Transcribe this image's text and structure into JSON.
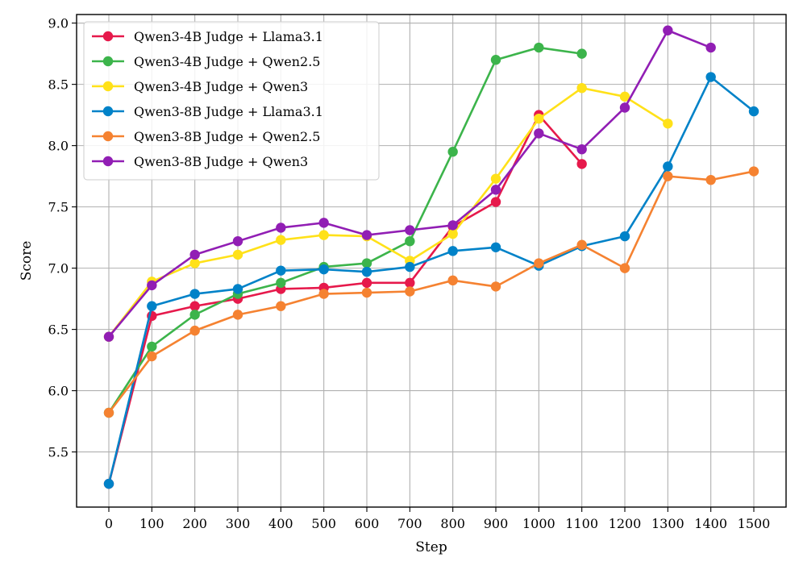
{
  "chart_data": {
    "type": "line",
    "title": "",
    "xlabel": "Step",
    "ylabel": "Score",
    "x": [
      0,
      100,
      200,
      300,
      400,
      500,
      600,
      700,
      800,
      900,
      1000,
      1100,
      1200,
      1300,
      1400,
      1500
    ],
    "x_tick_labels": [
      "0",
      "100",
      "200",
      "300",
      "400",
      "500",
      "600",
      "700",
      "800",
      "900",
      "1000",
      "1100",
      "1200",
      "1300",
      "1400",
      "1500"
    ],
    "y_ticks": [
      5.5,
      6.0,
      6.5,
      7.0,
      7.5,
      8.0,
      8.5,
      9.0
    ],
    "y_tick_labels": [
      "5.5",
      "6.0",
      "6.5",
      "7.0",
      "7.5",
      "8.0",
      "8.5",
      "9.0"
    ],
    "xlim": [
      -75,
      1575
    ],
    "ylim": [
      5.05,
      9.07
    ],
    "grid": true,
    "legend_position": "top-left",
    "series": [
      {
        "name": "Qwen3-4B Judge + Llama3.1",
        "color": "#e6194b",
        "x": [
          0,
          100,
          200,
          300,
          400,
          500,
          600,
          700,
          800,
          900,
          1000,
          1100
        ],
        "values": [
          5.24,
          6.61,
          6.69,
          6.75,
          6.83,
          6.84,
          6.88,
          6.88,
          7.34,
          7.54,
          8.25,
          7.85
        ]
      },
      {
        "name": "Qwen3-4B Judge + Qwen2.5",
        "color": "#3cb44b",
        "x": [
          0,
          100,
          200,
          300,
          400,
          500,
          600,
          700,
          800,
          900,
          1000,
          1100
        ],
        "values": [
          5.82,
          6.36,
          6.62,
          6.79,
          6.88,
          7.01,
          7.04,
          7.22,
          7.95,
          8.7,
          8.8,
          8.75
        ]
      },
      {
        "name": "Qwen3-4B Judge + Qwen3",
        "color": "#ffe119",
        "x": [
          0,
          100,
          200,
          300,
          400,
          500,
          600,
          700,
          800,
          900,
          1000,
          1100,
          1200,
          1300
        ],
        "values": [
          6.44,
          6.89,
          7.04,
          7.11,
          7.23,
          7.27,
          7.26,
          7.06,
          7.28,
          7.73,
          8.22,
          8.47,
          8.4,
          8.18
        ]
      },
      {
        "name": "Qwen3-8B Judge + Llama3.1",
        "color": "#0082c8",
        "x": [
          0,
          100,
          200,
          300,
          400,
          500,
          600,
          700,
          800,
          900,
          1000,
          1100,
          1200,
          1300,
          1400,
          1500
        ],
        "values": [
          5.24,
          6.69,
          6.79,
          6.83,
          6.98,
          6.99,
          6.97,
          7.01,
          7.14,
          7.17,
          7.02,
          7.18,
          7.26,
          7.83,
          8.56,
          8.28
        ]
      },
      {
        "name": "Qwen3-8B Judge + Qwen2.5",
        "color": "#f58231",
        "x": [
          0,
          100,
          200,
          300,
          400,
          500,
          600,
          700,
          800,
          900,
          1000,
          1100,
          1200,
          1300,
          1400,
          1500
        ],
        "values": [
          5.82,
          6.28,
          6.49,
          6.62,
          6.69,
          6.79,
          6.8,
          6.81,
          6.9,
          6.85,
          7.04,
          7.19,
          7.0,
          7.75,
          7.72,
          7.79
        ]
      },
      {
        "name": "Qwen3-8B Judge + Qwen3",
        "color": "#911eb4",
        "x": [
          0,
          100,
          200,
          300,
          400,
          500,
          600,
          700,
          800,
          900,
          1000,
          1100,
          1200,
          1300,
          1400
        ],
        "values": [
          6.44,
          6.86,
          7.11,
          7.22,
          7.33,
          7.37,
          7.27,
          7.31,
          7.35,
          7.64,
          8.1,
          7.97,
          8.31,
          8.94,
          8.8
        ]
      }
    ]
  }
}
